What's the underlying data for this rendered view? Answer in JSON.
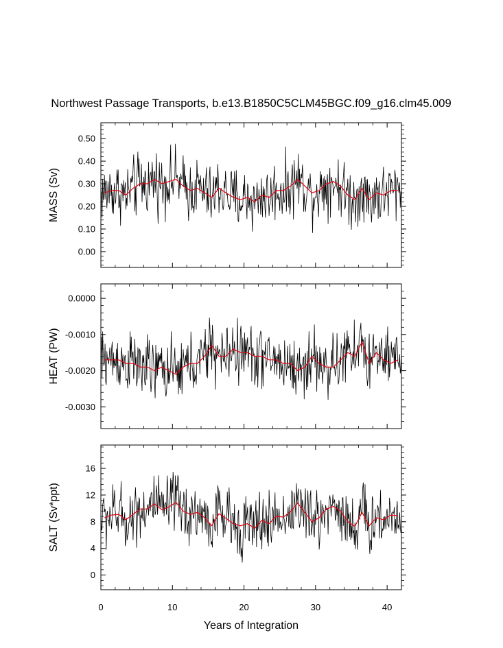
{
  "chart_data": {
    "title": "Northwest Passage Transports, b.e13.B1850C5CLM45BGC.f09_g16.clm45.009",
    "xlabel": "Years of Integration",
    "xlim": [
      0,
      42
    ],
    "xticks": [
      0,
      10,
      20,
      30,
      40
    ],
    "xtick_labels": [
      "0",
      "10",
      "20",
      "30",
      "40"
    ],
    "panels": [
      {
        "id": "mass",
        "type": "line",
        "ylabel": "MASS (Sv)",
        "ylim": [
          -0.07,
          0.57
        ],
        "yticks": [
          0.0,
          0.1,
          0.2,
          0.3,
          0.4,
          0.5
        ],
        "ytick_labels": [
          "0.00",
          "0.10",
          "0.20",
          "0.30",
          "0.40",
          "0.50"
        ],
        "annual_x": [
          0.5,
          1.5,
          2.5,
          3.5,
          4.5,
          5.5,
          6.5,
          7.5,
          8.5,
          9.5,
          10.5,
          11.5,
          12.5,
          13.5,
          14.5,
          15.5,
          16.5,
          17.5,
          18.5,
          19.5,
          20.5,
          21.5,
          22.5,
          23.5,
          24.5,
          25.5,
          26.5,
          27.5,
          28.5,
          29.5,
          30.5,
          31.5,
          32.5,
          33.5,
          34.5,
          35.5,
          36.5,
          37.5,
          38.5,
          39.5,
          40.5,
          41.5
        ],
        "annual_mean": [
          0.26,
          0.27,
          0.27,
          0.25,
          0.28,
          0.3,
          0.3,
          0.32,
          0.3,
          0.31,
          0.32,
          0.29,
          0.27,
          0.28,
          0.26,
          0.24,
          0.28,
          0.26,
          0.24,
          0.23,
          0.24,
          0.22,
          0.25,
          0.24,
          0.27,
          0.27,
          0.29,
          0.32,
          0.29,
          0.26,
          0.27,
          0.3,
          0.31,
          0.29,
          0.25,
          0.23,
          0.28,
          0.23,
          0.26,
          0.25,
          0.27,
          0.27
        ]
      },
      {
        "id": "heat",
        "type": "line",
        "ylabel": "HEAT (PW)",
        "ylim": [
          -0.0036,
          0.0004
        ],
        "yticks": [
          0.0,
          -0.001,
          -0.002,
          -0.003
        ],
        "ytick_labels": [
          "0.0000",
          "-0.0010",
          "-0.0020",
          "-0.0030"
        ],
        "annual_x": [
          0.5,
          1.5,
          2.5,
          3.5,
          4.5,
          5.5,
          6.5,
          7.5,
          8.5,
          9.5,
          10.5,
          11.5,
          12.5,
          13.5,
          14.5,
          15.5,
          16.5,
          17.5,
          18.5,
          19.5,
          20.5,
          21.5,
          22.5,
          23.5,
          24.5,
          25.5,
          26.5,
          27.5,
          28.5,
          29.5,
          30.5,
          31.5,
          32.5,
          33.5,
          34.5,
          35.5,
          36.5,
          37.5,
          38.5,
          39.5,
          40.5,
          41.5
        ],
        "annual_mean": [
          -0.0017,
          -0.0017,
          -0.0017,
          -0.0018,
          -0.0018,
          -0.0019,
          -0.0019,
          -0.002,
          -0.0019,
          -0.002,
          -0.0021,
          -0.0019,
          -0.0018,
          -0.0018,
          -0.0016,
          -0.0013,
          -0.0016,
          -0.0016,
          -0.0014,
          -0.0015,
          -0.0015,
          -0.0016,
          -0.0016,
          -0.0017,
          -0.0017,
          -0.0018,
          -0.0018,
          -0.002,
          -0.0019,
          -0.0016,
          -0.0018,
          -0.0019,
          -0.0019,
          -0.0017,
          -0.0015,
          -0.0016,
          -0.0012,
          -0.0018,
          -0.0015,
          -0.0017,
          -0.0018,
          -0.0017
        ]
      },
      {
        "id": "salt",
        "type": "line",
        "ylabel": "SALT (Sv*ppt)",
        "ylim": [
          -2.2,
          19.5
        ],
        "yticks": [
          0,
          4,
          8,
          12,
          16
        ],
        "ytick_labels": [
          "0",
          "4",
          "8",
          "12",
          "16"
        ],
        "annual_x": [
          0.5,
          1.5,
          2.5,
          3.5,
          4.5,
          5.5,
          6.5,
          7.5,
          8.5,
          9.5,
          10.5,
          11.5,
          12.5,
          13.5,
          14.5,
          15.5,
          16.5,
          17.5,
          18.5,
          19.5,
          20.5,
          21.5,
          22.5,
          23.5,
          24.5,
          25.5,
          26.5,
          27.5,
          28.5,
          29.5,
          30.5,
          31.5,
          32.5,
          33.5,
          34.5,
          35.5,
          36.5,
          37.5,
          38.5,
          39.5,
          40.5,
          41.5
        ],
        "annual_mean": [
          8.6,
          9.0,
          9.1,
          8.3,
          9.1,
          9.9,
          9.9,
          10.7,
          9.8,
          10.2,
          10.9,
          9.6,
          9.1,
          9.4,
          8.6,
          7.4,
          9.2,
          8.5,
          7.7,
          7.4,
          7.7,
          7.0,
          8.2,
          7.7,
          8.8,
          8.7,
          9.5,
          10.8,
          9.4,
          8.0,
          8.6,
          9.9,
          10.3,
          9.6,
          8.0,
          7.3,
          9.4,
          7.4,
          8.6,
          8.3,
          9.0,
          8.9
        ]
      }
    ],
    "series_styles": {
      "monthly": "#000000",
      "annual_mean": "#e3000f"
    }
  }
}
